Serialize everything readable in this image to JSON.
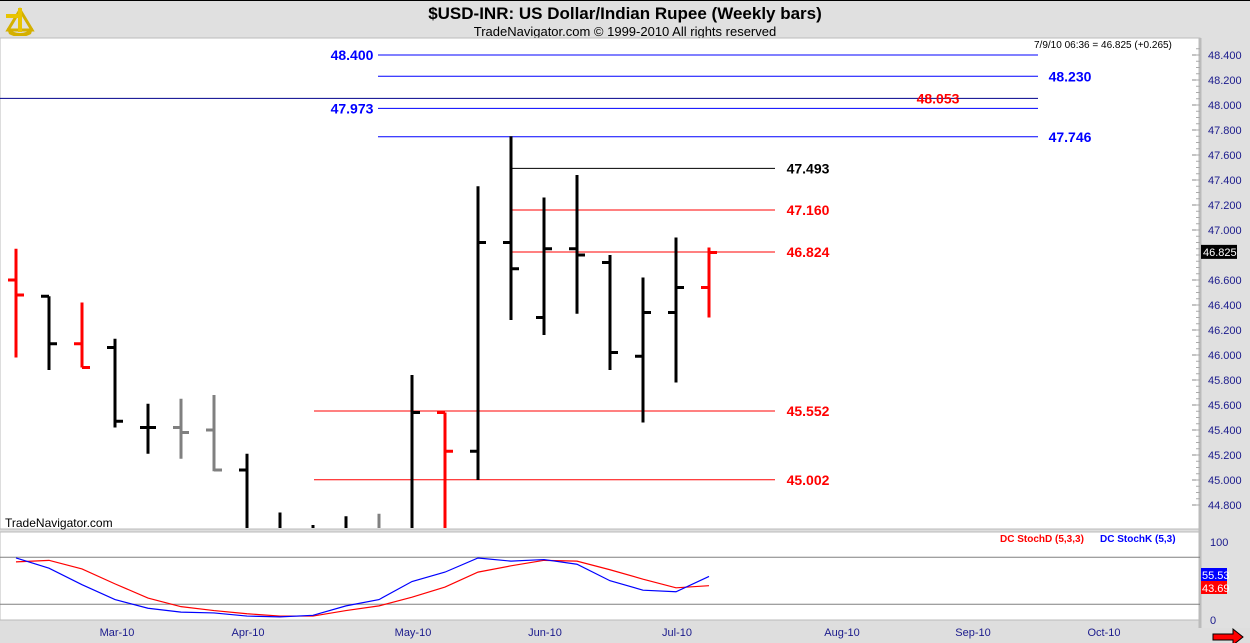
{
  "header": {
    "title": "$USD-INR:  US Dollar/Indian Rupee  (Weekly bars)",
    "copyright": "TradeNavigator.com © 1999-2010 All rights reserved",
    "last_quote": "7/9/10 06:36 = 46.825 (+0.265)",
    "watermark": "TradeNavigator.com",
    "logo_icon": "sextant-icon"
  },
  "colors": {
    "up": "#000000",
    "down": "#ff0000",
    "neutral": "#808080",
    "blue": "#0000ff",
    "red": "#ff0000"
  },
  "chart_data": [
    {
      "type": "ohlc",
      "title": "$USD-INR:  US Dollar/Indian Rupee  (Weekly bars)",
      "ylim": [
        44.7,
        48.5
      ],
      "y_ticks": [
        "48.400",
        "48.200",
        "48.000",
        "47.800",
        "47.600",
        "47.400",
        "47.200",
        "47.000",
        "46.600",
        "46.400",
        "46.200",
        "46.000",
        "45.800",
        "45.600",
        "45.400",
        "45.200",
        "45.000",
        "44.800"
      ],
      "last_price_label": "46.825",
      "x_ticks": [
        "Mar-10",
        "Apr-10",
        "May-10",
        "Jun-10",
        "Jul-10",
        "Aug-10",
        "Sep-10",
        "Oct-10"
      ],
      "bars": [
        {
          "o": 46.6,
          "h": 46.85,
          "l": 45.98,
          "c": 46.48,
          "color": "red"
        },
        {
          "o": 46.47,
          "h": 46.47,
          "l": 45.88,
          "c": 46.09,
          "color": "black"
        },
        {
          "o": 46.09,
          "h": 46.42,
          "l": 45.9,
          "c": 45.9,
          "color": "red"
        },
        {
          "o": 46.06,
          "h": 46.13,
          "l": 45.42,
          "c": 45.47,
          "color": "black"
        },
        {
          "o": 45.42,
          "h": 45.61,
          "l": 45.21,
          "c": 45.42,
          "color": "black"
        },
        {
          "o": 45.42,
          "h": 45.65,
          "l": 45.17,
          "c": 45.38,
          "color": "gray"
        },
        {
          "o": 45.4,
          "h": 45.68,
          "l": 45.07,
          "c": 45.08,
          "color": "gray"
        },
        {
          "o": 45.08,
          "h": 45.21,
          "l": 44.5,
          "c": 44.55,
          "color": "black"
        },
        {
          "o": 44.6,
          "h": 44.74,
          "l": 44.4,
          "c": 44.5,
          "color": "black"
        },
        {
          "o": 44.55,
          "h": 44.64,
          "l": 44.4,
          "c": 44.5,
          "color": "black"
        },
        {
          "o": 44.55,
          "h": 44.71,
          "l": 44.4,
          "c": 44.6,
          "color": "black"
        },
        {
          "o": 44.6,
          "h": 44.73,
          "l": 44.4,
          "c": 44.6,
          "color": "gray"
        },
        {
          "o": 44.6,
          "h": 45.84,
          "l": 44.5,
          "c": 45.54,
          "color": "black"
        },
        {
          "o": 45.54,
          "h": 45.54,
          "l": 44.5,
          "c": 45.23,
          "color": "red"
        },
        {
          "o": 45.23,
          "h": 47.35,
          "l": 45.0,
          "c": 46.9,
          "color": "black"
        },
        {
          "o": 46.9,
          "h": 47.75,
          "l": 46.28,
          "c": 46.69,
          "color": "black"
        },
        {
          "o": 46.3,
          "h": 47.26,
          "l": 46.16,
          "c": 46.85,
          "color": "black"
        },
        {
          "o": 46.85,
          "h": 47.44,
          "l": 46.33,
          "c": 46.8,
          "color": "black"
        },
        {
          "o": 46.74,
          "h": 46.8,
          "l": 45.88,
          "c": 46.02,
          "color": "black"
        },
        {
          "o": 45.99,
          "h": 46.62,
          "l": 45.46,
          "c": 46.34,
          "color": "black"
        },
        {
          "o": 46.34,
          "h": 46.94,
          "l": 45.78,
          "c": 46.54,
          "color": "black"
        },
        {
          "o": 46.54,
          "h": 46.86,
          "l": 46.3,
          "c": 46.82,
          "color": "red"
        }
      ],
      "levels": [
        {
          "value": 48.4,
          "label": "48.400",
          "color": "#0000ff"
        },
        {
          "value": 48.23,
          "label": "48.230",
          "color": "#0000ff"
        },
        {
          "value": 48.053,
          "label": "48.053",
          "color": "#ff0000"
        },
        {
          "value": 47.973,
          "label": "47.973",
          "color": "#0000ff"
        },
        {
          "value": 47.746,
          "label": "47.746",
          "color": "#0000ff"
        },
        {
          "value": 47.493,
          "label": "47.493",
          "color": "#000000"
        },
        {
          "value": 47.16,
          "label": "47.160",
          "color": "#ff0000"
        },
        {
          "value": 46.824,
          "label": "46.824",
          "color": "#ff0000"
        },
        {
          "value": 45.552,
          "label": "45.552",
          "color": "#ff0000"
        },
        {
          "value": 45.002,
          "label": "45.002",
          "color": "#ff0000"
        }
      ]
    },
    {
      "type": "line",
      "ylim": [
        0,
        100
      ],
      "y_ticks": [
        "100",
        "0"
      ],
      "reference_lines": [
        80,
        20
      ],
      "series": [
        {
          "name": "DC StochD (5,3,3)",
          "color": "#ff0000",
          "last_label": "43.69",
          "values": [
            74,
            76,
            65,
            46,
            28,
            17,
            12,
            8,
            5,
            5,
            12,
            18,
            29,
            42,
            61,
            69,
            76,
            75,
            64,
            52,
            41,
            43.69
          ]
        },
        {
          "name": "DC StochK (5,3)",
          "color": "#0000ff",
          "last_label": "55.53",
          "values": [
            79,
            66,
            45,
            26,
            15,
            10,
            9,
            5,
            4,
            6,
            18,
            26,
            49,
            61,
            79,
            75,
            77,
            71,
            50,
            38,
            36,
            55.53
          ]
        }
      ]
    }
  ]
}
